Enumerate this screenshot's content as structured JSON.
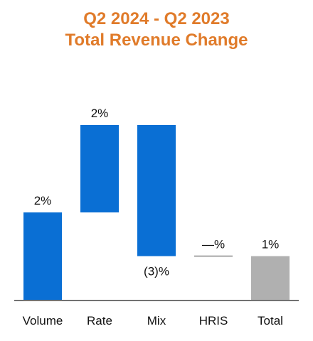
{
  "title": {
    "line1": "Q2 2024 - Q2 2023",
    "line2": "Total Revenue Change",
    "color": "#E07B2A"
  },
  "chart_data": {
    "type": "bar",
    "subtype": "waterfall",
    "categories": [
      "Volume",
      "Rate",
      "Mix",
      "HRIS",
      "Total"
    ],
    "values": [
      2,
      2,
      -3,
      0,
      1
    ],
    "bases": [
      0,
      2,
      4,
      1,
      0
    ],
    "data_labels": [
      "2%",
      "2%",
      "(3)%",
      "—%",
      "1%"
    ],
    "kinds": [
      "delta",
      "delta",
      "delta",
      "delta",
      "total"
    ],
    "title": "Q2 2024 - Q2 2023 Total Revenue Change",
    "xlabel": "",
    "ylabel": "",
    "ylim": [
      0,
      4
    ],
    "grid": false,
    "legend": "none",
    "colors": {
      "delta": "#0A6FD4",
      "total": "#B0B0B0",
      "axis": "#444444",
      "zero_line": "#888888"
    }
  }
}
